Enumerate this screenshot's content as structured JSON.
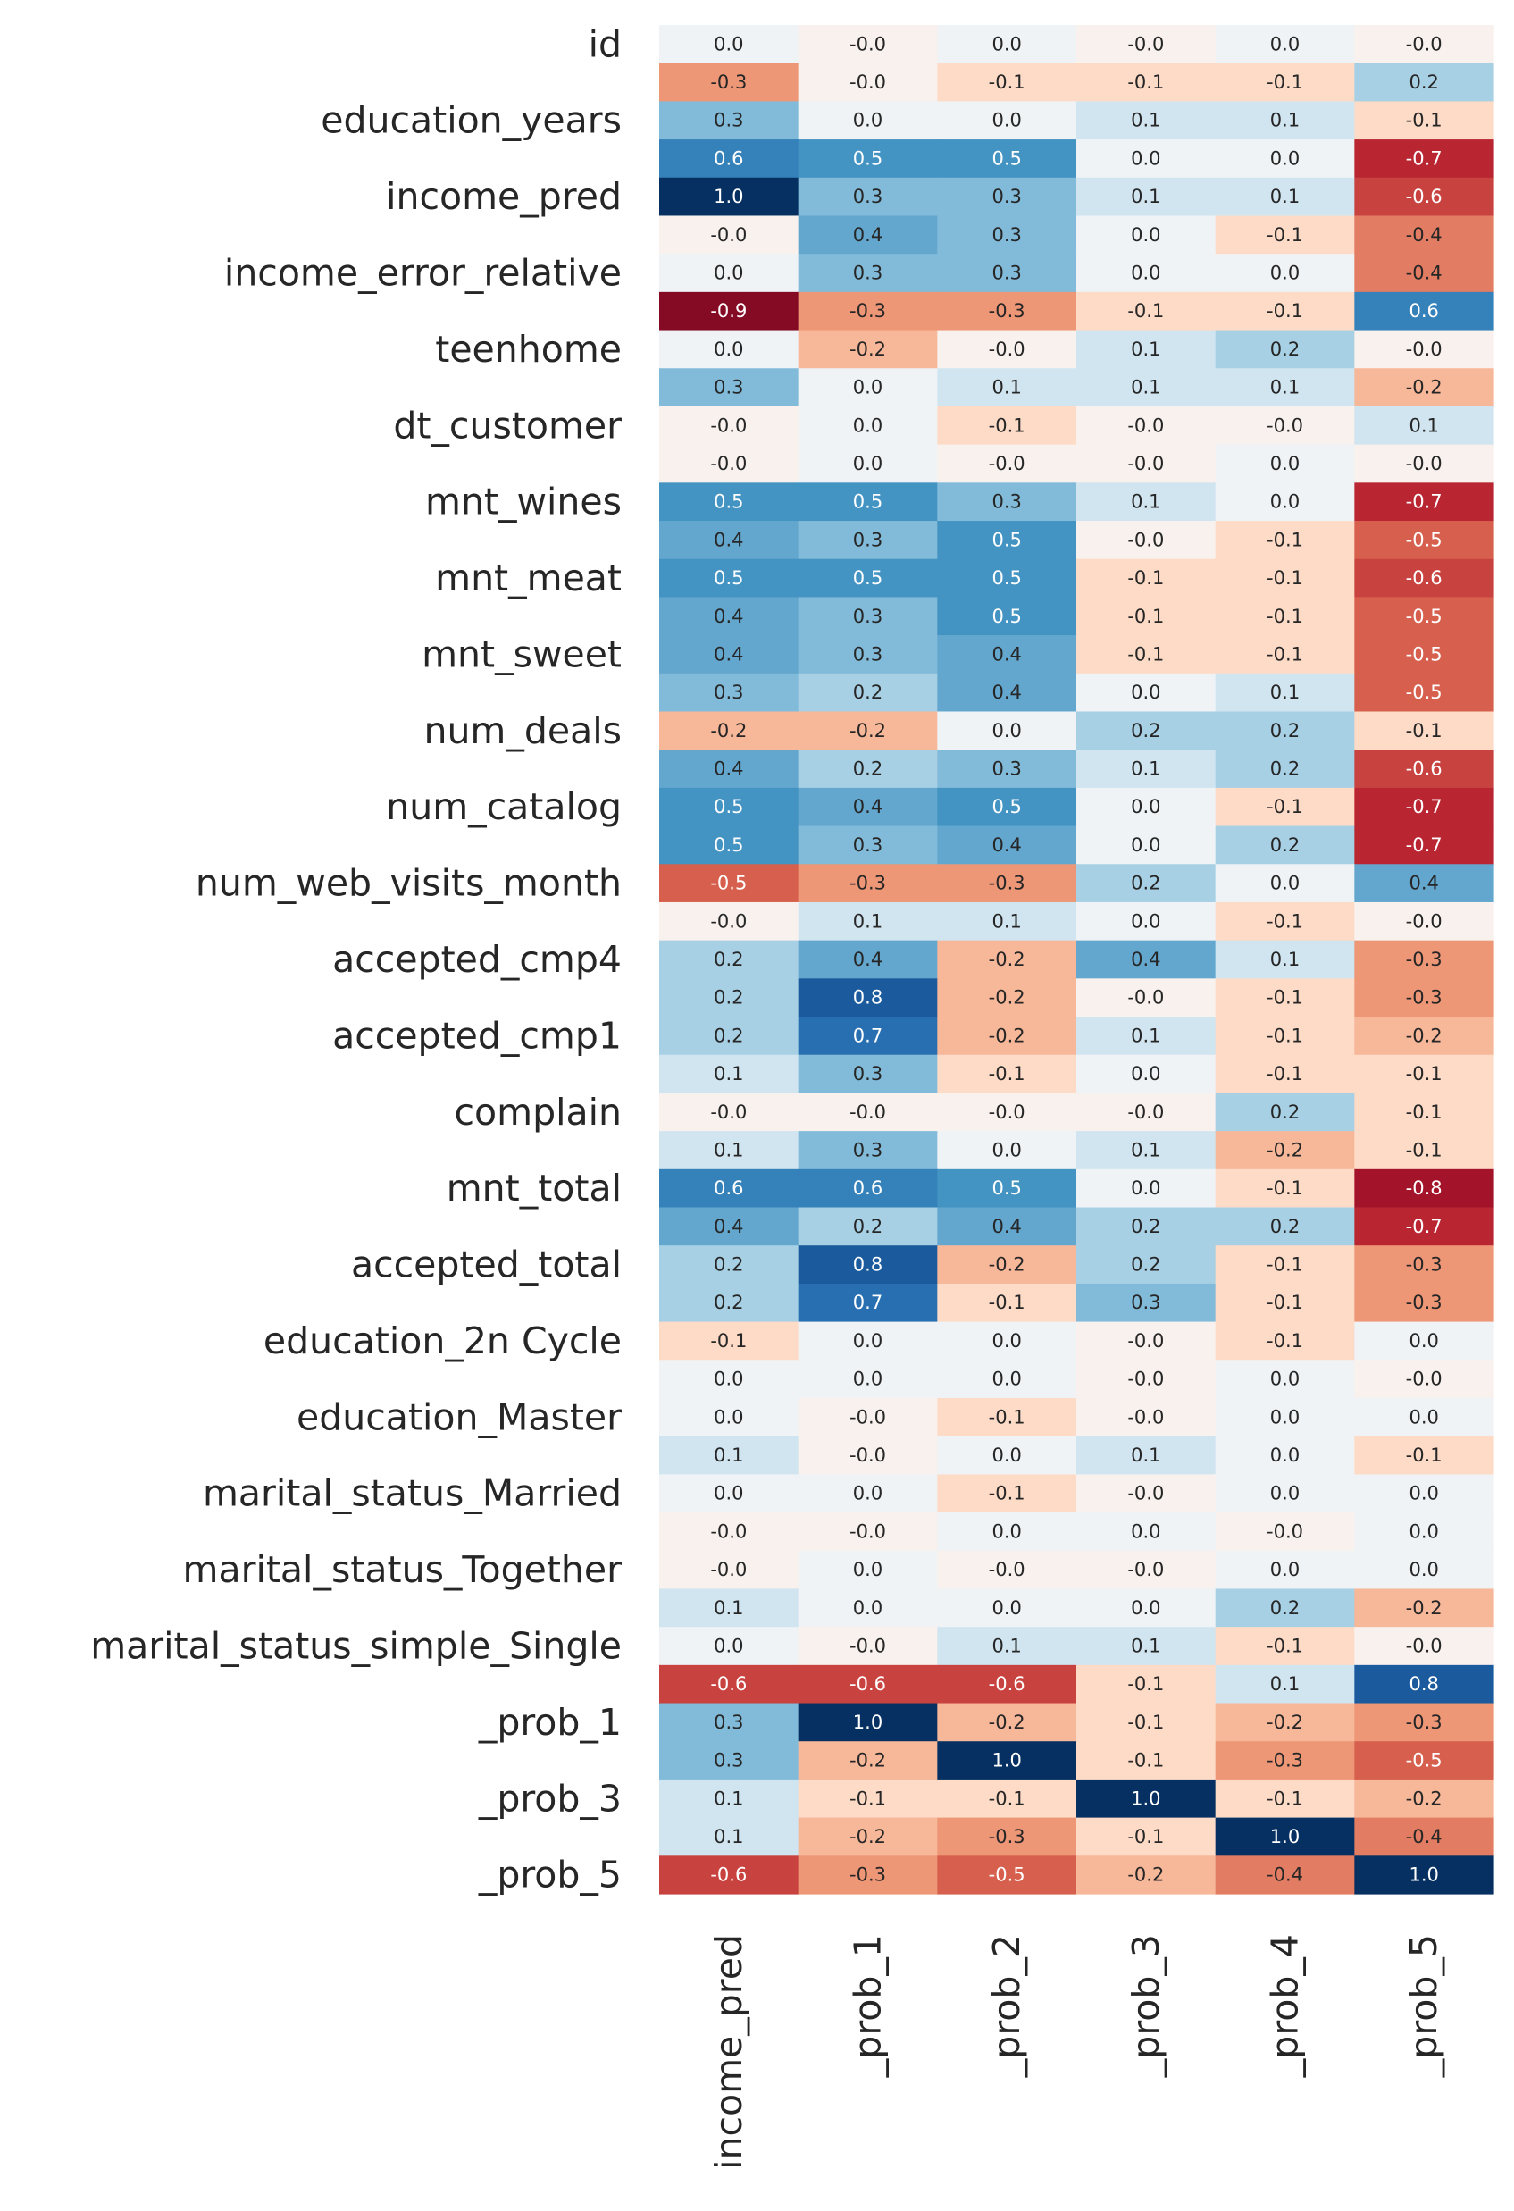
{
  "chart_data": {
    "type": "heatmap",
    "title": "",
    "colormap": "RdBu",
    "value_range": [
      -1.0,
      1.0
    ],
    "colorbar": false,
    "annotations": true,
    "annotation_format": "0.0",
    "x_labels": [
      "income_pred",
      "_prob_1",
      "_prob_2",
      "_prob_3",
      "_prob_4",
      "_prob_5"
    ],
    "y_tick_labels_shown": [
      "id",
      "education_years",
      "income_pred",
      "income_error_relative",
      "teenhome",
      "dt_customer",
      "mnt_wines",
      "mnt_meat",
      "mnt_sweet",
      "num_deals",
      "num_catalog",
      "num_web_visits_month",
      "accepted_cmp4",
      "accepted_cmp1",
      "complain",
      "mnt_total",
      "accepted_total",
      "education_2n Cycle",
      "education_Master",
      "marital_status_Married",
      "marital_status_Together",
      "marital_status_simple_Single",
      "_prob_1",
      "_prob_3",
      "_prob_5"
    ],
    "matrix": [
      [
        "0.0",
        "-0.0",
        "0.0",
        "-0.0",
        "0.0",
        "-0.0"
      ],
      [
        "-0.3",
        "-0.0",
        "-0.1",
        "-0.1",
        "-0.1",
        "0.2"
      ],
      [
        "0.3",
        "0.0",
        "0.0",
        "0.1",
        "0.1",
        "-0.1"
      ],
      [
        "0.6",
        "0.5",
        "0.5",
        "0.0",
        "0.0",
        "-0.7"
      ],
      [
        "1.0",
        "0.3",
        "0.3",
        "0.1",
        "0.1",
        "-0.6"
      ],
      [
        "-0.0",
        "0.4",
        "0.3",
        "0.0",
        "-0.1",
        "-0.4"
      ],
      [
        "0.0",
        "0.3",
        "0.3",
        "0.0",
        "0.0",
        "-0.4"
      ],
      [
        "-0.9",
        "-0.3",
        "-0.3",
        "-0.1",
        "-0.1",
        "0.6"
      ],
      [
        "0.0",
        "-0.2",
        "-0.0",
        "0.1",
        "0.2",
        "-0.0"
      ],
      [
        "0.3",
        "0.0",
        "0.1",
        "0.1",
        "0.1",
        "-0.2"
      ],
      [
        "-0.0",
        "0.0",
        "-0.1",
        "-0.0",
        "-0.0",
        "0.1"
      ],
      [
        "-0.0",
        "0.0",
        "-0.0",
        "-0.0",
        "0.0",
        "-0.0"
      ],
      [
        "0.5",
        "0.5",
        "0.3",
        "0.1",
        "0.0",
        "-0.7"
      ],
      [
        "0.4",
        "0.3",
        "0.5",
        "-0.0",
        "-0.1",
        "-0.5"
      ],
      [
        "0.5",
        "0.5",
        "0.5",
        "-0.1",
        "-0.1",
        "-0.6"
      ],
      [
        "0.4",
        "0.3",
        "0.5",
        "-0.1",
        "-0.1",
        "-0.5"
      ],
      [
        "0.4",
        "0.3",
        "0.4",
        "-0.1",
        "-0.1",
        "-0.5"
      ],
      [
        "0.3",
        "0.2",
        "0.4",
        "0.0",
        "0.1",
        "-0.5"
      ],
      [
        "-0.2",
        "-0.2",
        "0.0",
        "0.2",
        "0.2",
        "-0.1"
      ],
      [
        "0.4",
        "0.2",
        "0.3",
        "0.1",
        "0.2",
        "-0.6"
      ],
      [
        "0.5",
        "0.4",
        "0.5",
        "0.0",
        "-0.1",
        "-0.7"
      ],
      [
        "0.5",
        "0.3",
        "0.4",
        "0.0",
        "0.2",
        "-0.7"
      ],
      [
        "-0.5",
        "-0.3",
        "-0.3",
        "0.2",
        "0.0",
        "0.4"
      ],
      [
        "-0.0",
        "0.1",
        "0.1",
        "0.0",
        "-0.1",
        "-0.0"
      ],
      [
        "0.2",
        "0.4",
        "-0.2",
        "0.4",
        "0.1",
        "-0.3"
      ],
      [
        "0.2",
        "0.8",
        "-0.2",
        "-0.0",
        "-0.1",
        "-0.3"
      ],
      [
        "0.2",
        "0.7",
        "-0.2",
        "0.1",
        "-0.1",
        "-0.2"
      ],
      [
        "0.1",
        "0.3",
        "-0.1",
        "0.0",
        "-0.1",
        "-0.1"
      ],
      [
        "-0.0",
        "-0.0",
        "-0.0",
        "-0.0",
        "0.2",
        "-0.1"
      ],
      [
        "0.1",
        "0.3",
        "0.0",
        "0.1",
        "-0.2",
        "-0.1"
      ],
      [
        "0.6",
        "0.6",
        "0.5",
        "0.0",
        "-0.1",
        "-0.8"
      ],
      [
        "0.4",
        "0.2",
        "0.4",
        "0.2",
        "0.2",
        "-0.7"
      ],
      [
        "0.2",
        "0.8",
        "-0.2",
        "0.2",
        "-0.1",
        "-0.3"
      ],
      [
        "0.2",
        "0.7",
        "-0.1",
        "0.3",
        "-0.1",
        "-0.3"
      ],
      [
        "-0.1",
        "0.0",
        "0.0",
        "-0.0",
        "-0.1",
        "0.0"
      ],
      [
        "0.0",
        "0.0",
        "0.0",
        "-0.0",
        "0.0",
        "-0.0"
      ],
      [
        "0.0",
        "-0.0",
        "-0.1",
        "-0.0",
        "0.0",
        "0.0"
      ],
      [
        "0.1",
        "-0.0",
        "0.0",
        "0.1",
        "0.0",
        "-0.1"
      ],
      [
        "0.0",
        "0.0",
        "-0.1",
        "-0.0",
        "0.0",
        "0.0"
      ],
      [
        "-0.0",
        "-0.0",
        "0.0",
        "0.0",
        "-0.0",
        "0.0"
      ],
      [
        "-0.0",
        "0.0",
        "-0.0",
        "-0.0",
        "0.0",
        "0.0"
      ],
      [
        "0.1",
        "0.0",
        "0.0",
        "0.0",
        "0.2",
        "-0.2"
      ],
      [
        "0.0",
        "-0.0",
        "0.1",
        "0.1",
        "-0.1",
        "-0.0"
      ],
      [
        "-0.6",
        "-0.6",
        "-0.6",
        "-0.1",
        "0.1",
        "0.8"
      ],
      [
        "0.3",
        "1.0",
        "-0.2",
        "-0.1",
        "-0.2",
        "-0.3"
      ],
      [
        "0.3",
        "-0.2",
        "1.0",
        "-0.1",
        "-0.3",
        "-0.5"
      ],
      [
        "0.1",
        "-0.1",
        "-0.1",
        "1.0",
        "-0.1",
        "-0.2"
      ],
      [
        "0.1",
        "-0.2",
        "-0.3",
        "-0.1",
        "1.0",
        "-0.4"
      ],
      [
        "-0.6",
        "-0.3",
        "-0.5",
        "-0.2",
        "-0.4",
        "1.0"
      ]
    ]
  }
}
